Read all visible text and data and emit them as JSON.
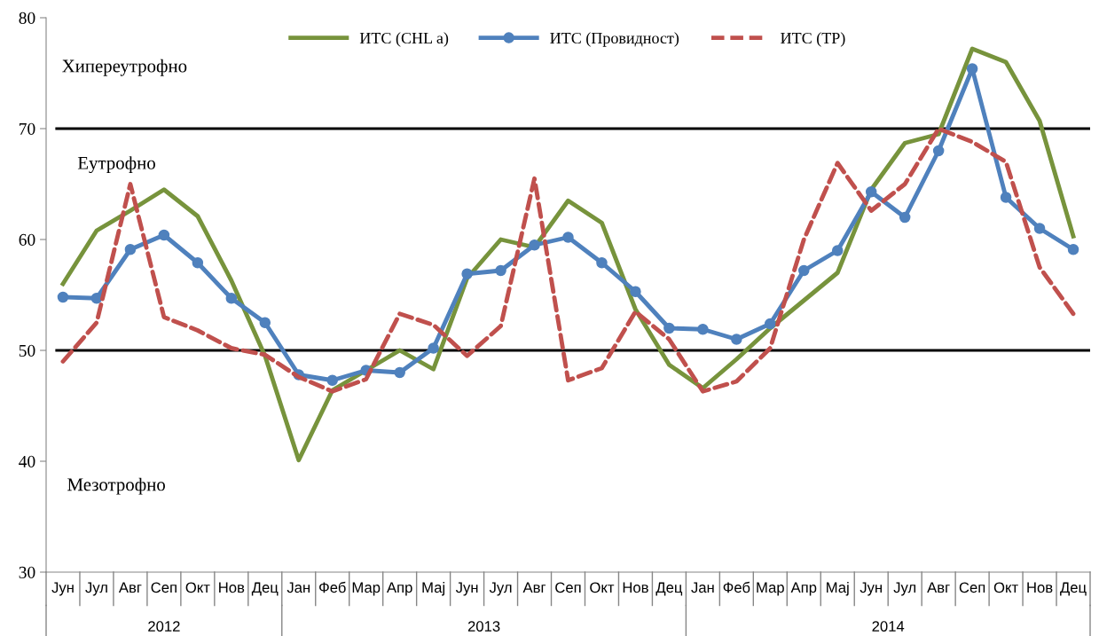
{
  "chart_data": {
    "type": "line",
    "categories": [
      "Јун",
      "Јул",
      "Авг",
      "Сеп",
      "Окт",
      "Нов",
      "Дец",
      "Јан",
      "Феб",
      "Мар",
      "Апр",
      "Мај",
      "Јун",
      "Јул",
      "Авг",
      "Сеп",
      "Окт",
      "Нов",
      "Дец",
      "Јан",
      "Феб",
      "Мар",
      "Апр",
      "Мај",
      "Јун",
      "Јул",
      "Авг",
      "Сеп",
      "Окт",
      "Нов",
      "Дец"
    ],
    "series": [
      {
        "name": "ИТС (CHL a)",
        "color": "#77933c",
        "marker": "none",
        "line_style": "solid",
        "values": [
          56.0,
          60.8,
          62.6,
          64.5,
          62.1,
          56.3,
          49.5,
          40.1,
          46.4,
          48.2,
          50.0,
          48.3,
          56.5,
          60.0,
          59.3,
          63.5,
          61.5,
          53.7,
          48.7,
          46.6,
          49.2,
          52.0,
          54.5,
          57.0,
          64.5,
          68.7,
          69.5,
          77.2,
          76.0,
          70.7,
          60.3
        ]
      },
      {
        "name": "ИТС (Провидност)",
        "color": "#4f81bd",
        "marker": "circle",
        "line_style": "solid",
        "values": [
          54.8,
          54.7,
          59.1,
          60.4,
          57.9,
          54.7,
          52.5,
          47.8,
          47.3,
          48.2,
          48.0,
          50.2,
          56.9,
          57.2,
          59.5,
          60.2,
          57.9,
          55.3,
          52.0,
          51.9,
          51.0,
          52.4,
          57.2,
          59.0,
          64.3,
          62.0,
          68.0,
          75.4,
          63.8,
          61.0,
          59.1
        ]
      },
      {
        "name": "ИТС (ТР)",
        "color": "#c0504d",
        "marker": "none",
        "line_style": "dashed",
        "values": [
          49.0,
          52.5,
          65.0,
          53.0,
          51.8,
          50.2,
          49.6,
          47.6,
          46.3,
          47.4,
          53.3,
          52.3,
          49.5,
          52.2,
          65.5,
          47.3,
          48.4,
          53.5,
          51.0,
          46.3,
          47.2,
          50.2,
          60.0,
          66.9,
          62.6,
          65.0,
          70.0,
          68.8,
          67.0,
          57.5,
          53.3
        ]
      }
    ],
    "ylim": [
      30,
      80
    ],
    "yticks": [
      30,
      40,
      50,
      60,
      70,
      80
    ],
    "ref_lines": [
      {
        "axis": "y",
        "value": 50,
        "color": "#000000"
      },
      {
        "axis": "y",
        "value": 70,
        "color": "#000000"
      }
    ],
    "annotations": [
      "Хипереутрофно",
      "Еутрофно",
      "Мезотрофно",
      "2012",
      "2013",
      "2014"
    ],
    "grid": false,
    "legend": "top"
  }
}
